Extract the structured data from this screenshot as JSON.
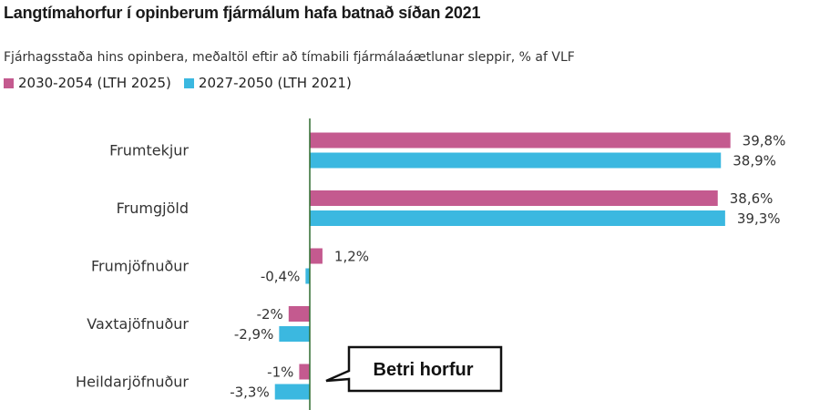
{
  "chart_data": {
    "type": "bar",
    "orientation": "horizontal",
    "title": "Langtímahorfur í opinberum fjármálum hafa batnað síðan 2021",
    "subtitle": "Fjárhagsstaða hins opinbera, meðaltöl eftir að tímabili fjármálaáætlunar sleppir, % af VLF",
    "categories": [
      "Frumtekjur",
      "Frumgjöld",
      "Frumjöfnuður",
      "Vaxtajöfnuður",
      "Heildarjöfnuður"
    ],
    "series": [
      {
        "name": "2030-2054 (LTH 2025)",
        "color": "#c45a8f",
        "values": [
          39.8,
          38.6,
          1.2,
          -2,
          -1
        ],
        "labels": [
          "39,8%",
          "38,6%",
          "1,2%",
          "-2%",
          "-1%"
        ]
      },
      {
        "name": "2027-2050 (LTH 2021)",
        "color": "#3bb8e0",
        "values": [
          38.9,
          39.3,
          -0.4,
          -2.9,
          -3.3
        ],
        "labels": [
          "38,9%",
          "39,3%",
          "-0,4%",
          "-2,9%",
          "-3,3%"
        ]
      }
    ],
    "xlim": [
      -3.3,
      39.8
    ],
    "zero_line_color": "#2e6b2e",
    "annotation": "Betri horfur"
  }
}
